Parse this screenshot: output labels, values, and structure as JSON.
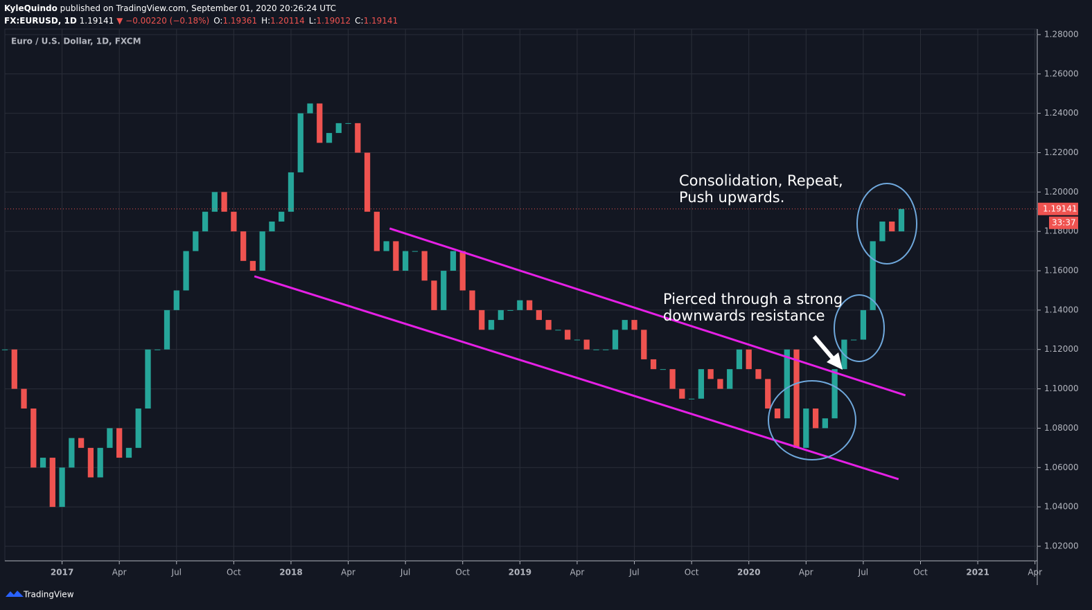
{
  "header": {
    "author": "KyleQuindo",
    "published": "published on TradingView.com, September 01, 2020 20:26:24 UTC",
    "symbol": "FX:EURUSD, 1D",
    "last": "1.19141",
    "change": "▼ −0.00220 (−0.18%)",
    "ohlc": [
      {
        "label": "O:",
        "value": "1.19361"
      },
      {
        "label": "H:",
        "value": "1.20114"
      },
      {
        "label": "L:",
        "value": "1.19012"
      },
      {
        "label": "C:",
        "value": "1.19141"
      }
    ]
  },
  "footer": {
    "brand": "TradingView"
  },
  "chart_data": {
    "type": "candlestick",
    "title": "Euro / U.S. Dollar, 1D, FXCM",
    "up_color": "#26a69a",
    "down_color": "#ef5350",
    "grid": true,
    "x": [
      2016.75,
      2016.7917,
      2016.8333,
      2016.875,
      2016.9167,
      2016.9583,
      2017.0,
      2017.0417,
      2017.0833,
      2017.125,
      2017.1667,
      2017.2083,
      2017.25,
      2017.2917,
      2017.3333,
      2017.375,
      2017.4167,
      2017.4583,
      2017.5,
      2017.5417,
      2017.5833,
      2017.625,
      2017.6667,
      2017.7083,
      2017.75,
      2017.7917,
      2017.8333,
      2017.875,
      2017.9167,
      2017.9583,
      2018.0,
      2018.0417,
      2018.0833,
      2018.125,
      2018.1667,
      2018.2083,
      2018.25,
      2018.2917,
      2018.3333,
      2018.375,
      2018.4167,
      2018.4583,
      2018.5,
      2018.5417,
      2018.5833,
      2018.625,
      2018.6667,
      2018.7083,
      2018.75,
      2018.7917,
      2018.8333,
      2018.875,
      2018.9167,
      2018.9583,
      2019.0,
      2019.0417,
      2019.0833,
      2019.125,
      2019.1667,
      2019.2083,
      2019.25,
      2019.2917,
      2019.3333,
      2019.375,
      2019.4167,
      2019.4583,
      2019.5,
      2019.5417,
      2019.5833,
      2019.625,
      2019.6667,
      2019.7083,
      2019.75,
      2019.7917,
      2019.8333,
      2019.875,
      2019.9167,
      2019.9583,
      2020.0,
      2020.0417,
      2020.0833,
      2020.125,
      2020.1667,
      2020.2083,
      2020.25,
      2020.2917,
      2020.3333,
      2020.375,
      2020.4167,
      2020.4583,
      2020.5,
      2020.5417,
      2020.5833,
      2020.625,
      2020.6667
    ],
    "close": [
      1.12,
      1.1,
      1.09,
      1.06,
      1.065,
      1.04,
      1.06,
      1.075,
      1.07,
      1.055,
      1.07,
      1.08,
      1.065,
      1.07,
      1.09,
      1.12,
      1.12,
      1.14,
      1.15,
      1.17,
      1.18,
      1.19,
      1.2,
      1.19,
      1.18,
      1.165,
      1.16,
      1.18,
      1.185,
      1.19,
      1.21,
      1.24,
      1.245,
      1.225,
      1.23,
      1.235,
      1.235,
      1.22,
      1.19,
      1.17,
      1.175,
      1.16,
      1.17,
      1.17,
      1.155,
      1.14,
      1.16,
      1.17,
      1.15,
      1.14,
      1.13,
      1.135,
      1.14,
      1.14,
      1.145,
      1.14,
      1.135,
      1.13,
      1.13,
      1.125,
      1.125,
      1.12,
      1.12,
      1.12,
      1.13,
      1.135,
      1.13,
      1.115,
      1.11,
      1.11,
      1.1,
      1.095,
      1.095,
      1.11,
      1.105,
      1.1,
      1.11,
      1.12,
      1.11,
      1.105,
      1.09,
      1.085,
      1.12,
      1.07,
      1.09,
      1.08,
      1.085,
      1.11,
      1.125,
      1.125,
      1.14,
      1.175,
      1.185,
      1.18,
      1.19141
    ],
    "xlim": [
      2016.75,
      2021.26
    ],
    "ylim": [
      1.0126,
      1.2828
    ],
    "xticks": [
      2017,
      {
        "value": 2017.25,
        "label": "Apr"
      },
      {
        "value": 2017.5,
        "label": "Jul"
      },
      {
        "value": 2017.75,
        "label": "Oct"
      },
      2018,
      {
        "value": 2018.25,
        "label": "Apr"
      },
      {
        "value": 2018.5,
        "label": "Jul"
      },
      {
        "value": 2018.75,
        "label": "Oct"
      },
      2019,
      {
        "value": 2019.25,
        "label": "Apr"
      },
      {
        "value": 2019.5,
        "label": "Jul"
      },
      {
        "value": 2019.75,
        "label": "Oct"
      },
      2020,
      {
        "value": 2020.25,
        "label": "Apr"
      },
      {
        "value": 2020.5,
        "label": "Jul"
      },
      {
        "value": 2020.75,
        "label": "Oct"
      },
      2021,
      {
        "value": 2021.25,
        "label": "Apr"
      }
    ],
    "yticks": [
      {
        "value": 1.02,
        "label": "1.02000"
      },
      {
        "value": 1.04,
        "label": "1.04000"
      },
      {
        "value": 1.06,
        "label": "1.06000"
      },
      {
        "value": 1.08,
        "label": "1.08000"
      },
      {
        "value": 1.1,
        "label": "1.10000"
      },
      {
        "value": 1.12,
        "label": "1.12000"
      },
      {
        "value": 1.14,
        "label": "1.14000"
      },
      {
        "value": 1.16,
        "label": "1.16000"
      },
      {
        "value": 1.18,
        "label": "1.18000"
      },
      {
        "value": 1.2,
        "label": "1.20000"
      },
      {
        "value": 1.22,
        "label": "1.22000"
      },
      {
        "value": 1.24,
        "label": "1.24000"
      },
      {
        "value": 1.26,
        "label": "1.26000"
      },
      {
        "value": 1.28,
        "label": "1.28000"
      }
    ],
    "last_price": 1.19141,
    "last_price_color": "#ef5350",
    "countdown": "33:37",
    "trend_lines": [
      {
        "color": "#e620e6",
        "x": [
          2018.431,
          2020.684
        ],
        "y": [
          1.1815,
          1.0967
        ]
      },
      {
        "color": "#e620e6",
        "x": [
          2017.84,
          2020.654
        ],
        "y": [
          1.1572,
          1.0541
        ]
      }
    ],
    "annotations": [
      {
        "lines": [
          "Consolidation, Repeat,",
          "Push upwards."
        ]
      },
      {
        "lines": [
          "Pierced through a strong",
          "downwards resistance"
        ]
      }
    ]
  }
}
